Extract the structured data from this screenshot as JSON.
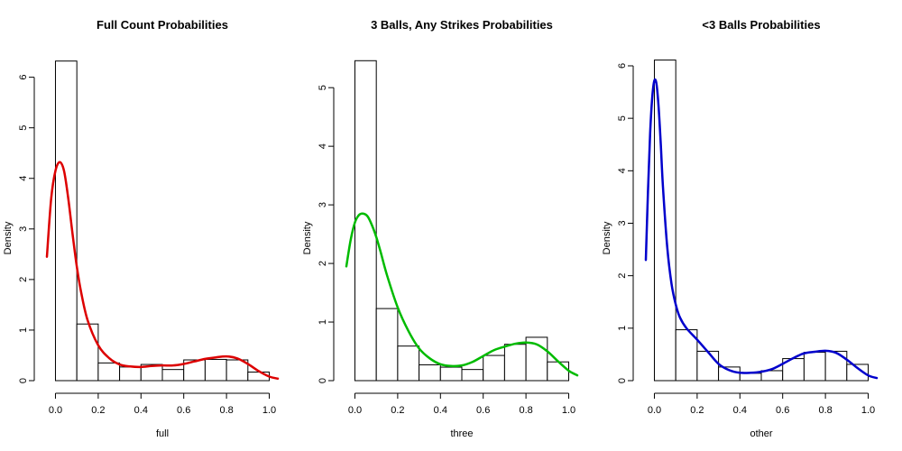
{
  "chart_data": [
    {
      "type": "histogram",
      "title": "Full Count Probabilities",
      "xlabel": "full",
      "ylabel": "Density",
      "xlim": [
        -0.04,
        1.04
      ],
      "ylim": [
        0,
        6.35
      ],
      "xticks": [
        0.0,
        0.2,
        0.4,
        0.6,
        0.8,
        1.0
      ],
      "xtick_labels": [
        "0.0",
        "0.2",
        "0.4",
        "0.6",
        "0.8",
        "1.0"
      ],
      "yticks": [
        0,
        1,
        2,
        3,
        4,
        5,
        6
      ],
      "ytick_labels": [
        "0",
        "1",
        "2",
        "3",
        "4",
        "5",
        "6"
      ],
      "bins": [
        0.0,
        0.1,
        0.2,
        0.3,
        0.4,
        0.5,
        0.6,
        0.7,
        0.8,
        0.9,
        1.0
      ],
      "values": [
        6.32,
        1.12,
        0.35,
        0.27,
        0.32,
        0.22,
        0.41,
        0.42,
        0.41,
        0.17
      ],
      "density_color": "#dd0000",
      "density": {
        "x": [
          -0.04,
          -0.02,
          0.0,
          0.02,
          0.04,
          0.06,
          0.08,
          0.1,
          0.12,
          0.15,
          0.2,
          0.25,
          0.3,
          0.35,
          0.4,
          0.45,
          0.5,
          0.55,
          0.6,
          0.65,
          0.7,
          0.75,
          0.8,
          0.85,
          0.9,
          0.95,
          1.0,
          1.04
        ],
        "y": [
          2.45,
          3.6,
          4.15,
          4.32,
          4.15,
          3.6,
          2.9,
          2.25,
          1.75,
          1.2,
          0.7,
          0.45,
          0.32,
          0.28,
          0.27,
          0.29,
          0.3,
          0.3,
          0.33,
          0.38,
          0.43,
          0.46,
          0.48,
          0.44,
          0.33,
          0.19,
          0.08,
          0.04
        ]
      }
    },
    {
      "type": "histogram",
      "title": "3 Balls, Any Strikes Probabilities",
      "xlabel": "three",
      "ylabel": "Density",
      "xlim": [
        -0.04,
        1.04
      ],
      "ylim": [
        0,
        5.48
      ],
      "xticks": [
        0.0,
        0.2,
        0.4,
        0.6,
        0.8,
        1.0
      ],
      "xtick_labels": [
        "0.0",
        "0.2",
        "0.4",
        "0.6",
        "0.8",
        "1.0"
      ],
      "yticks": [
        0,
        1,
        2,
        3,
        4,
        5
      ],
      "ytick_labels": [
        "0",
        "1",
        "2",
        "3",
        "4",
        "5"
      ],
      "bins": [
        0.0,
        0.1,
        0.2,
        0.3,
        0.4,
        0.5,
        0.6,
        0.7,
        0.8,
        0.9,
        1.0
      ],
      "values": [
        5.46,
        1.23,
        0.59,
        0.27,
        0.23,
        0.19,
        0.43,
        0.62,
        0.74,
        0.32
      ],
      "density_color": "#00bb00",
      "density": {
        "x": [
          -0.04,
          -0.02,
          0.0,
          0.02,
          0.04,
          0.06,
          0.08,
          0.1,
          0.12,
          0.15,
          0.2,
          0.25,
          0.3,
          0.35,
          0.4,
          0.45,
          0.5,
          0.55,
          0.6,
          0.65,
          0.7,
          0.75,
          0.8,
          0.85,
          0.9,
          0.95,
          1.0,
          1.04
        ],
        "y": [
          1.95,
          2.4,
          2.7,
          2.83,
          2.85,
          2.8,
          2.65,
          2.45,
          2.2,
          1.8,
          1.25,
          0.85,
          0.55,
          0.38,
          0.28,
          0.25,
          0.26,
          0.32,
          0.42,
          0.52,
          0.58,
          0.63,
          0.65,
          0.62,
          0.5,
          0.33,
          0.17,
          0.09
        ]
      }
    },
    {
      "type": "histogram",
      "title": "<3 Balls Probabilities",
      "xlabel": "other",
      "ylabel": "Density",
      "xlim": [
        -0.04,
        1.04
      ],
      "ylim": [
        0,
        6.12
      ],
      "xticks": [
        0.0,
        0.2,
        0.4,
        0.6,
        0.8,
        1.0
      ],
      "xtick_labels": [
        "0.0",
        "0.2",
        "0.4",
        "0.6",
        "0.8",
        "1.0"
      ],
      "yticks": [
        0,
        1,
        2,
        3,
        4,
        5,
        6
      ],
      "ytick_labels": [
        "0",
        "1",
        "2",
        "3",
        "4",
        "5",
        "6"
      ],
      "bins": [
        0.0,
        0.1,
        0.2,
        0.3,
        0.4,
        0.5,
        0.6,
        0.7,
        0.8,
        0.9,
        1.0
      ],
      "values": [
        6.11,
        0.97,
        0.56,
        0.26,
        0.14,
        0.19,
        0.42,
        0.54,
        0.56,
        0.31
      ],
      "density_color": "#0000cc",
      "density": {
        "x": [
          -0.04,
          -0.03,
          -0.02,
          -0.01,
          0.0,
          0.01,
          0.02,
          0.03,
          0.04,
          0.06,
          0.08,
          0.1,
          0.12,
          0.15,
          0.2,
          0.25,
          0.3,
          0.35,
          0.4,
          0.45,
          0.5,
          0.55,
          0.6,
          0.65,
          0.7,
          0.75,
          0.8,
          0.85,
          0.9,
          0.95,
          1.0,
          1.04
        ],
        "y": [
          2.3,
          3.6,
          4.7,
          5.4,
          5.72,
          5.65,
          5.2,
          4.5,
          3.7,
          2.55,
          1.85,
          1.45,
          1.2,
          1.0,
          0.78,
          0.55,
          0.32,
          0.2,
          0.15,
          0.15,
          0.17,
          0.22,
          0.32,
          0.43,
          0.52,
          0.55,
          0.57,
          0.53,
          0.4,
          0.24,
          0.1,
          0.05
        ]
      }
    }
  ]
}
